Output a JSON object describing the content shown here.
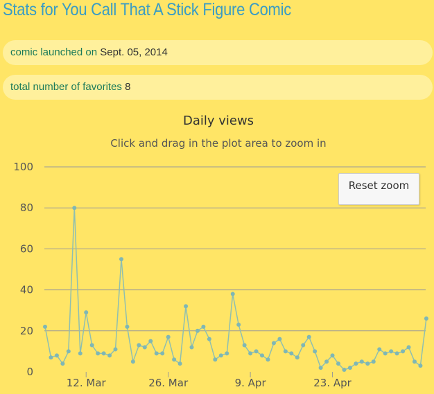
{
  "page": {
    "title": "Stats for You Call That A Stick Figure Comic"
  },
  "stats": [
    {
      "label": "comic launched on",
      "value": "Sept. 05, 2014"
    },
    {
      "label": "total number of favorites",
      "value": "8"
    }
  ],
  "reset_zoom_label": "Reset zoom",
  "colors": {
    "line": "#8fbfb0",
    "point": "#7fb7b5",
    "grid": "#999999",
    "background": "#ffe566"
  },
  "chart_data": {
    "type": "line",
    "title": "Daily views",
    "subtitle": "Click and drag in the plot area to zoom in",
    "xlabel": "",
    "ylabel": "",
    "ylim": [
      0,
      100
    ],
    "yticks": [
      0,
      20,
      40,
      60,
      80,
      100
    ],
    "xticks": [
      "12. Mar",
      "26. Mar",
      "9. Apr",
      "23. Apr"
    ],
    "xtick_day_index": [
      7,
      21,
      35,
      49
    ],
    "grid": true,
    "legend": "none",
    "series": [
      {
        "values": [
          22,
          7,
          8,
          4,
          10,
          80,
          9,
          29,
          13,
          9,
          9,
          8,
          11,
          55,
          22,
          5,
          13,
          12,
          15,
          9,
          9,
          17,
          6,
          4,
          32,
          12,
          20,
          22,
          16,
          6,
          8,
          9,
          38,
          23,
          13,
          9,
          10,
          8,
          6,
          14,
          16,
          10,
          9,
          7,
          13,
          17,
          10,
          2,
          5,
          8,
          4,
          1,
          2,
          4,
          5,
          4,
          5,
          11,
          9,
          10,
          9,
          10,
          12,
          5,
          3,
          26
        ]
      }
    ]
  }
}
